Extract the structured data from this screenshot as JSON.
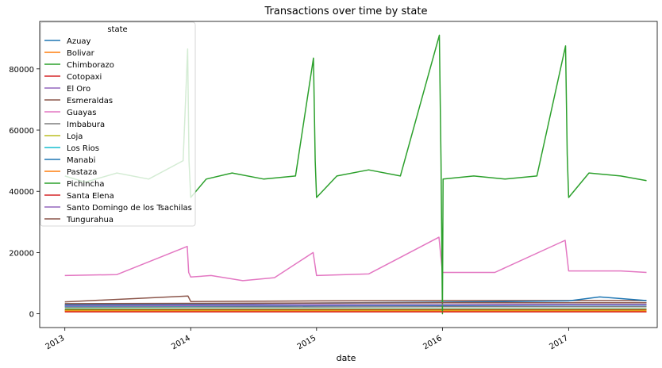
{
  "chart_data": {
    "type": "line",
    "title": "Transactions over time by state",
    "xlabel": "date",
    "ylabel": "",
    "xlim": [
      "2012-10-20",
      "2017-09-15"
    ],
    "ylim": [
      -4500,
      95500
    ],
    "x_ticks": [
      "2013",
      "2014",
      "2015",
      "2016",
      "2017"
    ],
    "y_ticks": [
      0,
      20000,
      40000,
      60000,
      80000
    ],
    "y_tick_labels": [
      "0",
      "20000",
      "40000",
      "60000",
      "80000"
    ],
    "grid": false,
    "legend": {
      "title": "state",
      "placement": "top-left"
    },
    "series": [
      {
        "name": "Azuay",
        "color": "#1f77b4",
        "points": [
          [
            "2013-01-01",
            2300
          ],
          [
            "2014-01-01",
            2400
          ],
          [
            "2015-01-01",
            2600
          ],
          [
            "2016-01-01",
            2700
          ],
          [
            "2017-01-01",
            2800
          ],
          [
            "2017-08-15",
            2800
          ]
        ]
      },
      {
        "name": "Bolivar",
        "color": "#ff7f0e",
        "points": [
          [
            "2013-01-01",
            800
          ],
          [
            "2014-01-01",
            800
          ],
          [
            "2015-01-01",
            800
          ],
          [
            "2016-01-01",
            800
          ],
          [
            "2017-01-01",
            800
          ],
          [
            "2017-08-15",
            800
          ]
        ]
      },
      {
        "name": "Chimborazo",
        "color": "#2ca02c",
        "points": [
          [
            "2013-01-01",
            1500
          ],
          [
            "2014-01-01",
            1500
          ],
          [
            "2015-01-01",
            1500
          ],
          [
            "2016-01-01",
            1500
          ],
          [
            "2017-01-01",
            1500
          ],
          [
            "2017-08-15",
            1500
          ]
        ]
      },
      {
        "name": "Cotopaxi",
        "color": "#d62728",
        "points": [
          [
            "2013-01-01",
            1200
          ],
          [
            "2014-01-01",
            1300
          ],
          [
            "2015-01-01",
            1300
          ],
          [
            "2016-01-01",
            1300
          ],
          [
            "2017-01-01",
            1300
          ],
          [
            "2017-08-15",
            1300
          ]
        ]
      },
      {
        "name": "El Oro",
        "color": "#9467bd",
        "points": [
          [
            "2013-01-01",
            2800
          ],
          [
            "2014-01-01",
            2900
          ],
          [
            "2015-01-01",
            3000
          ],
          [
            "2016-01-01",
            3000
          ],
          [
            "2017-01-01",
            3100
          ],
          [
            "2017-08-15",
            3100
          ]
        ]
      },
      {
        "name": "Esmeraldas",
        "color": "#8c564b",
        "points": [
          [
            "2013-01-01",
            3900
          ],
          [
            "2013-12-24",
            5800
          ],
          [
            "2014-01-01",
            4000
          ],
          [
            "2015-01-01",
            4200
          ],
          [
            "2016-01-01",
            4300
          ],
          [
            "2017-01-01",
            4300
          ],
          [
            "2017-08-15",
            4300
          ]
        ]
      },
      {
        "name": "Guayas",
        "color": "#e377c2",
        "points": [
          [
            "2013-01-01",
            12500
          ],
          [
            "2013-06-01",
            12800
          ],
          [
            "2013-12-22",
            22000
          ],
          [
            "2013-12-26",
            13500
          ],
          [
            "2014-01-01",
            12000
          ],
          [
            "2014-03-01",
            12500
          ],
          [
            "2014-06-01",
            10800
          ],
          [
            "2014-09-01",
            11800
          ],
          [
            "2014-12-22",
            20000
          ],
          [
            "2015-01-01",
            12500
          ],
          [
            "2015-06-01",
            13000
          ],
          [
            "2015-12-22",
            25000
          ],
          [
            "2016-01-01",
            13500
          ],
          [
            "2016-06-01",
            13500
          ],
          [
            "2016-12-22",
            24000
          ],
          [
            "2017-01-01",
            14000
          ],
          [
            "2017-06-01",
            14000
          ],
          [
            "2017-08-15",
            13500
          ]
        ]
      },
      {
        "name": "Imbabura",
        "color": "#7f7f7f",
        "points": [
          [
            "2013-01-01",
            2100
          ],
          [
            "2014-01-01",
            2200
          ],
          [
            "2015-01-01",
            2200
          ],
          [
            "2016-01-01",
            2300
          ],
          [
            "2017-01-01",
            2300
          ],
          [
            "2017-08-15",
            2300
          ]
        ]
      },
      {
        "name": "Loja",
        "color": "#bcbd22",
        "points": [
          [
            "2013-01-01",
            1100
          ],
          [
            "2014-01-01",
            1100
          ],
          [
            "2015-01-01",
            1100
          ],
          [
            "2016-01-01",
            1100
          ],
          [
            "2017-01-01",
            1100
          ],
          [
            "2017-08-15",
            1100
          ]
        ]
      },
      {
        "name": "Los Rios",
        "color": "#17becf",
        "points": [
          [
            "2013-01-01",
            2500
          ],
          [
            "2014-01-01",
            2600
          ],
          [
            "2015-01-01",
            2800
          ],
          [
            "2016-01-01",
            2900
          ],
          [
            "2017-01-01",
            3000
          ],
          [
            "2017-08-15",
            3000
          ]
        ]
      },
      {
        "name": "Manabi",
        "color": "#1f77b4",
        "points": [
          [
            "2013-01-01",
            3000
          ],
          [
            "2014-01-01",
            3200
          ],
          [
            "2015-01-01",
            3500
          ],
          [
            "2016-01-01",
            3800
          ],
          [
            "2017-01-01",
            4200
          ],
          [
            "2017-04-01",
            5500
          ],
          [
            "2017-08-15",
            4300
          ]
        ]
      },
      {
        "name": "Pastaza",
        "color": "#ff7f0e",
        "points": [
          [
            "2013-01-01",
            900
          ],
          [
            "2014-01-01",
            900
          ],
          [
            "2015-01-01",
            900
          ],
          [
            "2016-01-01",
            900
          ],
          [
            "2017-01-01",
            900
          ],
          [
            "2017-08-15",
            900
          ]
        ]
      },
      {
        "name": "Pichincha",
        "color": "#2ca02c",
        "points": [
          [
            "2013-01-01",
            45000
          ],
          [
            "2013-03-01",
            43000
          ],
          [
            "2013-06-01",
            46000
          ],
          [
            "2013-09-01",
            44000
          ],
          [
            "2013-12-10",
            50000
          ],
          [
            "2013-12-23",
            86500
          ],
          [
            "2013-12-27",
            50000
          ],
          [
            "2014-01-01",
            38000
          ],
          [
            "2014-02-15",
            44000
          ],
          [
            "2014-05-01",
            46000
          ],
          [
            "2014-08-01",
            44000
          ],
          [
            "2014-11-01",
            45000
          ],
          [
            "2014-12-23",
            83500
          ],
          [
            "2014-12-28",
            50000
          ],
          [
            "2015-01-01",
            38000
          ],
          [
            "2015-03-01",
            45000
          ],
          [
            "2015-06-01",
            47000
          ],
          [
            "2015-09-01",
            45000
          ],
          [
            "2015-12-23",
            91000
          ],
          [
            "2015-12-28",
            50000
          ],
          [
            "2016-01-01",
            0
          ],
          [
            "2016-01-03",
            44000
          ],
          [
            "2016-04-01",
            45000
          ],
          [
            "2016-07-01",
            44000
          ],
          [
            "2016-10-01",
            45000
          ],
          [
            "2016-12-23",
            87500
          ],
          [
            "2016-12-28",
            52000
          ],
          [
            "2017-01-01",
            38000
          ],
          [
            "2017-03-01",
            46000
          ],
          [
            "2017-06-01",
            45000
          ],
          [
            "2017-08-15",
            43500
          ]
        ]
      },
      {
        "name": "Santa Elena",
        "color": "#d62728",
        "points": [
          [
            "2013-01-01",
            600
          ],
          [
            "2014-01-01",
            600
          ],
          [
            "2015-01-01",
            600
          ],
          [
            "2016-01-01",
            600
          ],
          [
            "2017-01-01",
            600
          ],
          [
            "2017-08-15",
            600
          ]
        ]
      },
      {
        "name": "Santo Domingo de los Tsachilas",
        "color": "#9467bd",
        "points": [
          [
            "2013-01-01",
            2600
          ],
          [
            "2014-01-01",
            2700
          ],
          [
            "2015-01-01",
            2800
          ],
          [
            "2016-01-01",
            2900
          ],
          [
            "2017-01-01",
            3000
          ],
          [
            "2017-08-15",
            3000
          ]
        ]
      },
      {
        "name": "Tungurahua",
        "color": "#8c564b",
        "points": [
          [
            "2013-01-01",
            3300
          ],
          [
            "2014-01-01",
            3400
          ],
          [
            "2015-01-01",
            3500
          ],
          [
            "2016-01-01",
            3600
          ],
          [
            "2017-01-01",
            3600
          ],
          [
            "2017-08-15",
            3600
          ]
        ]
      }
    ]
  }
}
